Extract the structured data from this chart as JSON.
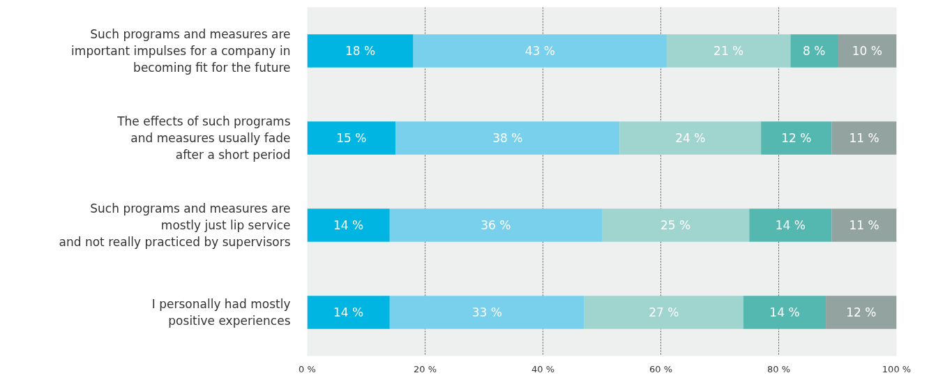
{
  "chart_data": {
    "type": "bar",
    "orientation": "horizontal",
    "stacked": true,
    "categories": [
      "Such programs and measures are\nimportant impulses for a company in\nbecoming fit for the future",
      "The effects of such programs\nand measures usually fade\nafter a short period",
      "Such programs and measures are\nmostly just lip service\nand not really practiced by supervisors",
      "I personally had mostly\npositive experiences"
    ],
    "series": [
      {
        "color": "#00b5e2",
        "values": [
          18,
          15,
          14,
          14
        ],
        "value_labels": [
          "18 %",
          "15 %",
          "14 %",
          "14 %"
        ]
      },
      {
        "color": "#78d0ec",
        "values": [
          43,
          38,
          36,
          33
        ],
        "value_labels": [
          "43 %",
          "38 %",
          "36 %",
          "33 %"
        ]
      },
      {
        "color": "#a0d4cf",
        "values": [
          21,
          24,
          25,
          27
        ],
        "value_labels": [
          "21 %",
          "24 %",
          "25 %",
          "27 %"
        ]
      },
      {
        "color": "#55b8b0",
        "values": [
          8,
          12,
          14,
          14
        ],
        "value_labels": [
          "8 %",
          "12 %",
          "14 %",
          "14 %"
        ]
      },
      {
        "color": "#93a3a0",
        "values": [
          10,
          11,
          11,
          12
        ],
        "value_labels": [
          "10 %",
          "11 %",
          "11 %",
          "12 %"
        ]
      }
    ],
    "xlim": [
      0,
      100
    ],
    "xticks": [
      {
        "value": 0,
        "label": "0 %"
      },
      {
        "value": 20,
        "label": "20 %"
      },
      {
        "value": 40,
        "label": "40 %"
      },
      {
        "value": 60,
        "label": "60 %"
      },
      {
        "value": 80,
        "label": "80 %"
      },
      {
        "value": 100,
        "label": "100 %"
      }
    ],
    "grid": "x"
  }
}
